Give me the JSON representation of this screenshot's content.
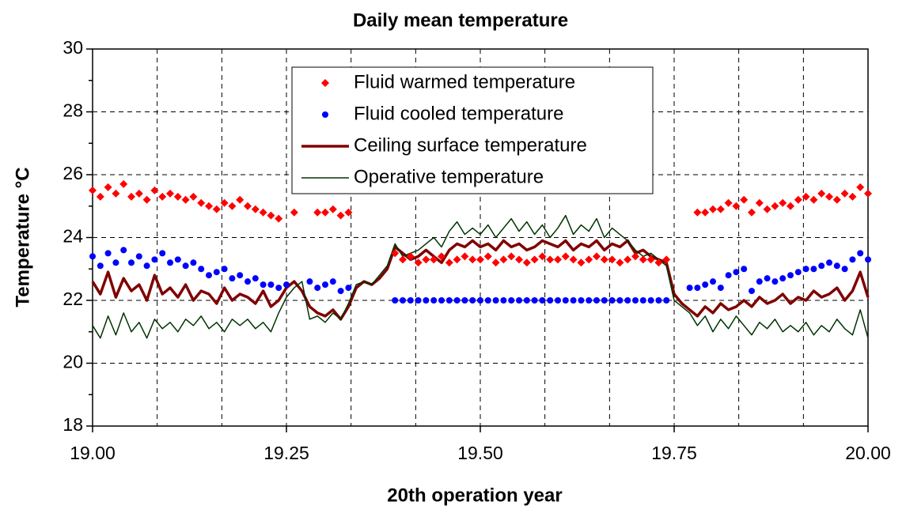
{
  "chart_data": {
    "type": "line",
    "title": "Daily mean temperature",
    "x_label": "20th operation year",
    "y_label": "Temperature °C",
    "x": [
      19,
      19.01,
      19.02,
      19.03,
      19.04,
      19.05,
      19.06,
      19.07,
      19.08,
      19.09,
      19.1,
      19.11,
      19.12,
      19.13,
      19.14,
      19.15,
      19.16,
      19.17,
      19.18,
      19.19,
      19.2,
      19.21,
      19.22,
      19.23,
      19.24,
      19.25,
      19.26,
      19.27,
      19.28,
      19.29,
      19.3,
      19.31,
      19.32,
      19.33,
      19.34,
      19.35,
      19.36,
      19.37,
      19.38,
      19.39,
      19.4,
      19.41,
      19.42,
      19.43,
      19.44,
      19.45,
      19.46,
      19.47,
      19.48,
      19.49,
      19.5,
      19.51,
      19.52,
      19.53,
      19.54,
      19.55,
      19.56,
      19.57,
      19.58,
      19.59,
      19.6,
      19.61,
      19.62,
      19.63,
      19.64,
      19.65,
      19.66,
      19.67,
      19.68,
      19.69,
      19.7,
      19.71,
      19.72,
      19.73,
      19.74,
      19.75,
      19.76,
      19.77,
      19.78,
      19.79,
      19.8,
      19.81,
      19.82,
      19.83,
      19.84,
      19.85,
      19.86,
      19.87,
      19.88,
      19.89,
      19.9,
      19.91,
      19.92,
      19.93,
      19.94,
      19.95,
      19.96,
      19.97,
      19.98,
      19.99,
      20
    ],
    "series": [
      {
        "name": "Fluid warmed temperature",
        "color": "#ff0000",
        "marker": "diamond",
        "values": [
          25.5,
          25.3,
          25.6,
          25.4,
          25.7,
          25.3,
          25.4,
          25.2,
          25.5,
          25.3,
          25.4,
          25.3,
          25.2,
          25.3,
          25.1,
          25.0,
          24.9,
          25.1,
          25.0,
          25.2,
          25.0,
          24.9,
          24.8,
          24.7,
          24.6,
          null,
          24.8,
          null,
          null,
          24.8,
          24.8,
          24.9,
          24.7,
          24.8,
          null,
          null,
          null,
          null,
          null,
          23.5,
          23.3,
          23.4,
          23.2,
          23.3,
          23.3,
          23.4,
          23.2,
          23.3,
          23.4,
          23.3,
          23.3,
          23.4,
          23.2,
          23.3,
          23.4,
          23.3,
          23.2,
          23.3,
          23.4,
          23.3,
          23.3,
          23.4,
          23.3,
          23.2,
          23.3,
          23.4,
          23.3,
          23.3,
          23.2,
          23.3,
          23.4,
          23.3,
          23.3,
          23.2,
          23.3,
          null,
          null,
          null,
          24.8,
          24.8,
          24.9,
          24.9,
          25.1,
          25.0,
          25.2,
          24.8,
          25.1,
          24.9,
          25.0,
          25.1,
          25.0,
          25.2,
          25.3,
          25.2,
          25.4,
          25.3,
          25.2,
          25.4,
          25.3,
          25.6,
          25.4
        ]
      },
      {
        "name": "Fluid cooled temperature",
        "color": "#0000ff",
        "marker": "circle",
        "values": [
          23.4,
          23.1,
          23.5,
          23.2,
          23.6,
          23.2,
          23.4,
          23.1,
          23.3,
          23.5,
          23.2,
          23.3,
          23.1,
          23.2,
          23.0,
          22.8,
          22.9,
          23.0,
          22.7,
          22.8,
          22.6,
          22.7,
          22.5,
          22.5,
          22.4,
          22.5,
          null,
          null,
          22.6,
          22.4,
          22.5,
          22.6,
          22.3,
          22.4,
          null,
          null,
          null,
          null,
          null,
          22.0,
          22.0,
          22.0,
          22.0,
          22.0,
          22.0,
          22.0,
          22.0,
          22.0,
          22.0,
          22.0,
          22.0,
          22.0,
          22.0,
          22.0,
          22.0,
          22.0,
          22.0,
          22.0,
          22.0,
          22.0,
          22.0,
          22.0,
          22.0,
          22.0,
          22.0,
          22.0,
          22.0,
          22.0,
          22.0,
          22.0,
          22.0,
          22.0,
          22.0,
          22.0,
          22.0,
          null,
          null,
          22.4,
          22.4,
          22.5,
          22.6,
          22.4,
          22.8,
          22.9,
          23.0,
          22.3,
          22.6,
          22.7,
          22.6,
          22.7,
          22.8,
          22.9,
          23.0,
          23.0,
          23.1,
          23.2,
          23.1,
          23.0,
          23.3,
          23.5,
          23.3
        ]
      },
      {
        "name": "Ceiling surface temperature",
        "color": "#800000",
        "line_width": 3.5,
        "values": [
          22.6,
          22.2,
          22.9,
          22.1,
          22.7,
          22.3,
          22.5,
          22.0,
          22.8,
          22.2,
          22.4,
          22.1,
          22.5,
          22.0,
          22.3,
          22.2,
          21.9,
          22.4,
          22.0,
          22.2,
          22.1,
          21.9,
          22.3,
          21.8,
          22.0,
          22.4,
          22.6,
          22.3,
          21.8,
          21.6,
          21.5,
          21.7,
          21.4,
          21.8,
          22.4,
          22.6,
          22.5,
          22.7,
          23.0,
          23.7,
          23.5,
          23.3,
          23.4,
          23.6,
          23.4,
          23.2,
          23.6,
          23.8,
          23.7,
          23.9,
          23.7,
          23.8,
          23.6,
          23.9,
          23.7,
          23.8,
          23.6,
          23.7,
          23.9,
          23.8,
          23.7,
          23.9,
          23.6,
          23.8,
          23.7,
          23.9,
          23.6,
          23.8,
          23.7,
          23.9,
          23.5,
          23.6,
          23.4,
          23.3,
          23.2,
          22.2,
          21.9,
          21.7,
          21.5,
          21.8,
          21.6,
          21.9,
          21.7,
          21.8,
          22.0,
          21.8,
          22.1,
          21.9,
          22.0,
          22.2,
          21.9,
          22.1,
          22.0,
          22.3,
          22.1,
          22.2,
          22.4,
          22.0,
          22.3,
          22.9,
          22.1
        ]
      },
      {
        "name": "Operative temperature",
        "color": "#003300",
        "line_width": 1.5,
        "values": [
          21.2,
          20.8,
          21.5,
          20.9,
          21.6,
          21.0,
          21.3,
          20.8,
          21.4,
          21.1,
          21.3,
          21.0,
          21.4,
          21.2,
          21.5,
          21.1,
          21.3,
          21.0,
          21.4,
          21.2,
          21.4,
          21.1,
          21.3,
          21.0,
          21.6,
          22.1,
          22.4,
          22.6,
          21.4,
          21.5,
          21.3,
          21.6,
          21.4,
          21.9,
          22.5,
          22.6,
          22.5,
          22.8,
          23.1,
          23.8,
          23.4,
          23.5,
          23.6,
          23.8,
          24.0,
          23.7,
          24.2,
          24.5,
          24.1,
          24.3,
          24.1,
          24.4,
          24.0,
          24.3,
          24.6,
          24.2,
          24.5,
          24.1,
          24.4,
          24.0,
          24.3,
          24.7,
          24.1,
          24.4,
          24.2,
          24.6,
          24.0,
          24.3,
          24.1,
          23.9,
          23.6,
          23.4,
          23.5,
          23.3,
          23.1,
          22.0,
          21.8,
          21.6,
          21.2,
          21.5,
          21.0,
          21.4,
          21.1,
          21.5,
          21.2,
          20.9,
          21.3,
          21.1,
          21.4,
          21.0,
          21.2,
          21.0,
          21.3,
          20.9,
          21.2,
          21.0,
          21.4,
          21.1,
          20.9,
          21.7,
          20.8
        ]
      }
    ],
    "xlim": [
      19,
      20
    ],
    "xticks": [
      {
        "value": 19,
        "label": "19.00"
      },
      19.25,
      {
        "value": 19.5,
        "label": "19.50"
      },
      19.75,
      {
        "value": 20,
        "label": "20.00"
      }
    ],
    "x_grid_lines": [
      19.0833,
      19.1667,
      19.25,
      19.3333,
      19.4167,
      19.5,
      19.5833,
      19.6667,
      19.75,
      19.8333,
      19.9167
    ],
    "ylim": [
      18,
      30
    ],
    "yticks": [
      18,
      20,
      22,
      24,
      26,
      28,
      30
    ],
    "y_minor_ticks": [
      19,
      21,
      23,
      25,
      27,
      29
    ],
    "grid": true,
    "legend": "top-center"
  }
}
